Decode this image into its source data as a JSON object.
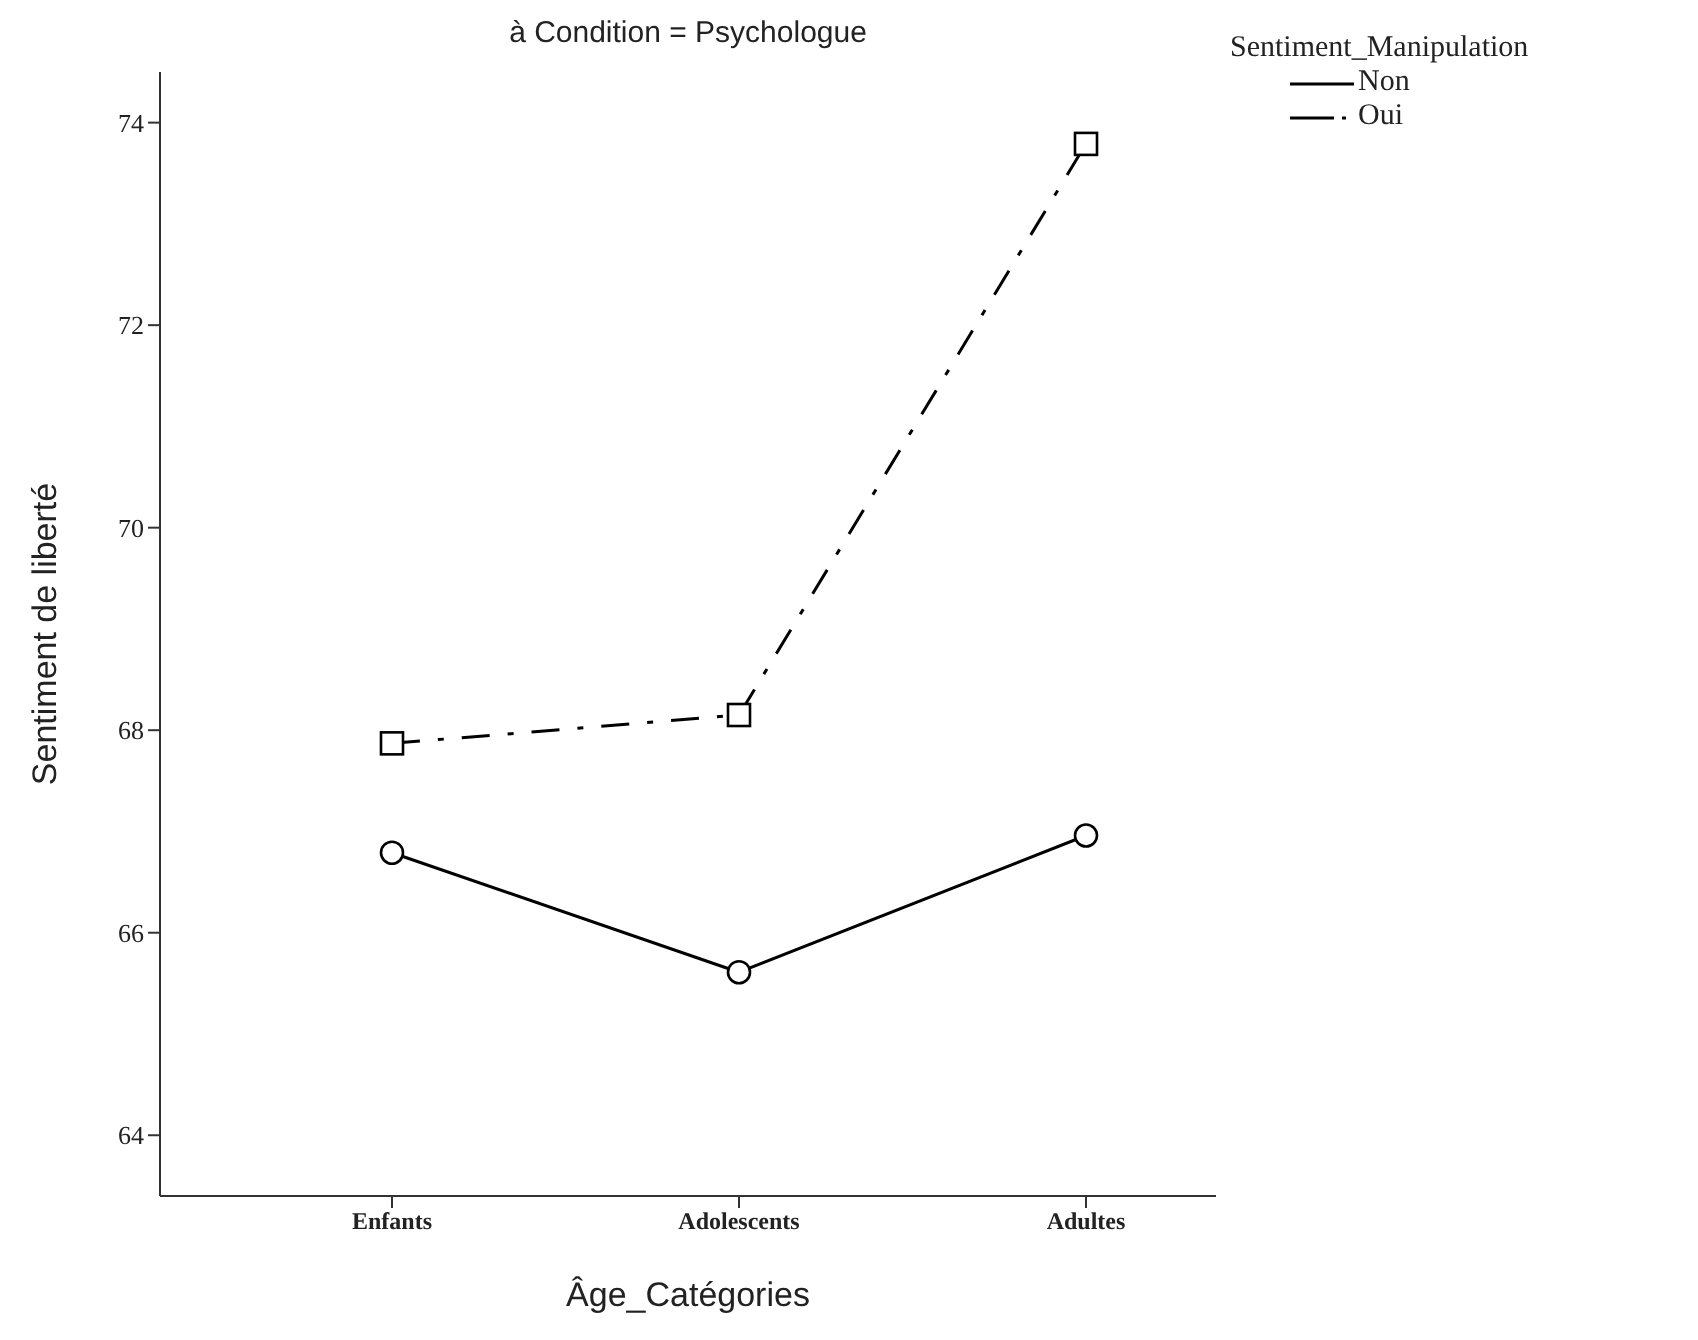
{
  "chart_data": {
    "type": "line",
    "title": "à Condition = Psychologue",
    "xlabel": "Âge_Catégories",
    "ylabel": "Sentiment de liberté",
    "legend_title": "Sentiment_Manipulation",
    "legend": "top right",
    "grid": false,
    "categories": [
      "Enfants",
      "Adolescents",
      "Adultes"
    ],
    "ylim": [
      63.4,
      74.5
    ],
    "yticks": [
      64,
      66,
      68,
      70,
      72,
      74
    ],
    "series": [
      {
        "name": "Non",
        "color": "#000000",
        "marker": "circle",
        "line_style": "solid",
        "values": [
          66.79,
          65.61,
          66.96
        ]
      },
      {
        "name": "Oui",
        "color": "#000000",
        "marker": "square",
        "line_style": "dashed",
        "values": [
          67.87,
          68.15,
          73.79
        ]
      }
    ]
  }
}
